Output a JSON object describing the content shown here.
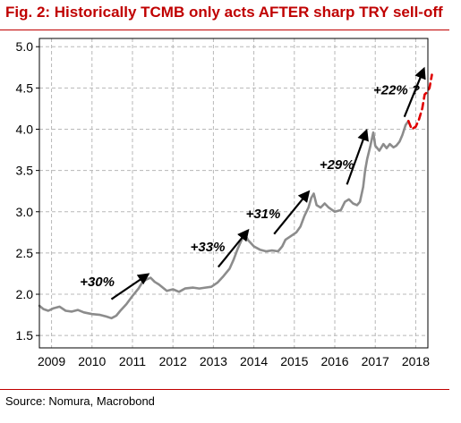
{
  "title": "Fig. 2: Historically TCMB only acts AFTER sharp TRY sell-off",
  "source": "Source: Nomura, Macrobond",
  "chart_data": {
    "type": "line",
    "title": "Fig. 2: Historically TCMB only acts AFTER sharp TRY sell-off",
    "xlabel": "",
    "ylabel": "",
    "xlim": [
      2009.0,
      2018.6
    ],
    "ylim": [
      1.35,
      5.1
    ],
    "grid": true,
    "x_ticks": [
      {
        "label": "2009",
        "x": 2009.3
      },
      {
        "label": "2010",
        "x": 2010.3
      },
      {
        "label": "2011",
        "x": 2011.3
      },
      {
        "label": "2012",
        "x": 2012.3
      },
      {
        "label": "2013",
        "x": 2013.3
      },
      {
        "label": "2014",
        "x": 2014.3
      },
      {
        "label": "2015",
        "x": 2015.3
      },
      {
        "label": "2016",
        "x": 2016.3
      },
      {
        "label": "2017",
        "x": 2017.3
      },
      {
        "label": "2018",
        "x": 2018.3
      }
    ],
    "y_ticks": [
      {
        "label": "1.5",
        "y": 1.5
      },
      {
        "label": "2.0",
        "y": 2.0
      },
      {
        "label": "2.5",
        "y": 2.5
      },
      {
        "label": "3.0",
        "y": 3.0
      },
      {
        "label": "3.5",
        "y": 3.5
      },
      {
        "label": "4.0",
        "y": 4.0
      },
      {
        "label": "4.5",
        "y": 4.5
      },
      {
        "label": "5.0",
        "y": 5.0
      }
    ],
    "series": [
      {
        "color": "#8c8c8c",
        "style": "solid",
        "points": [
          [
            2009.0,
            1.86
          ],
          [
            2009.1,
            1.82
          ],
          [
            2009.22,
            1.8
          ],
          [
            2009.35,
            1.83
          ],
          [
            2009.5,
            1.85
          ],
          [
            2009.65,
            1.8
          ],
          [
            2009.8,
            1.79
          ],
          [
            2009.95,
            1.81
          ],
          [
            2010.1,
            1.78
          ],
          [
            2010.3,
            1.76
          ],
          [
            2010.5,
            1.75
          ],
          [
            2010.65,
            1.73
          ],
          [
            2010.78,
            1.71
          ],
          [
            2010.9,
            1.74
          ],
          [
            2011.0,
            1.8
          ],
          [
            2011.15,
            1.88
          ],
          [
            2011.3,
            1.98
          ],
          [
            2011.45,
            2.07
          ],
          [
            2011.55,
            2.15
          ],
          [
            2011.65,
            2.18
          ],
          [
            2011.75,
            2.2
          ],
          [
            2011.85,
            2.15
          ],
          [
            2011.95,
            2.12
          ],
          [
            2012.05,
            2.08
          ],
          [
            2012.15,
            2.04
          ],
          [
            2012.3,
            2.06
          ],
          [
            2012.45,
            2.03
          ],
          [
            2012.6,
            2.07
          ],
          [
            2012.8,
            2.08
          ],
          [
            2012.95,
            2.07
          ],
          [
            2013.1,
            2.08
          ],
          [
            2013.25,
            2.09
          ],
          [
            2013.4,
            2.14
          ],
          [
            2013.55,
            2.22
          ],
          [
            2013.7,
            2.31
          ],
          [
            2013.8,
            2.42
          ],
          [
            2013.9,
            2.55
          ],
          [
            2014.0,
            2.66
          ],
          [
            2014.07,
            2.74
          ],
          [
            2014.15,
            2.66
          ],
          [
            2014.3,
            2.58
          ],
          [
            2014.45,
            2.54
          ],
          [
            2014.6,
            2.52
          ],
          [
            2014.75,
            2.53
          ],
          [
            2014.9,
            2.52
          ],
          [
            2015.0,
            2.58
          ],
          [
            2015.08,
            2.66
          ],
          [
            2015.2,
            2.7
          ],
          [
            2015.35,
            2.75
          ],
          [
            2015.45,
            2.82
          ],
          [
            2015.55,
            2.95
          ],
          [
            2015.65,
            3.05
          ],
          [
            2015.72,
            3.17
          ],
          [
            2015.78,
            3.22
          ],
          [
            2015.85,
            3.08
          ],
          [
            2015.95,
            3.05
          ],
          [
            2016.05,
            3.1
          ],
          [
            2016.15,
            3.05
          ],
          [
            2016.3,
            3.0
          ],
          [
            2016.45,
            3.02
          ],
          [
            2016.55,
            3.12
          ],
          [
            2016.65,
            3.15
          ],
          [
            2016.75,
            3.1
          ],
          [
            2016.85,
            3.08
          ],
          [
            2016.92,
            3.12
          ],
          [
            2017.0,
            3.3
          ],
          [
            2017.05,
            3.5
          ],
          [
            2017.1,
            3.64
          ],
          [
            2017.18,
            3.8
          ],
          [
            2017.25,
            3.96
          ],
          [
            2017.3,
            3.8
          ],
          [
            2017.4,
            3.74
          ],
          [
            2017.5,
            3.82
          ],
          [
            2017.58,
            3.77
          ],
          [
            2017.66,
            3.82
          ],
          [
            2017.75,
            3.78
          ],
          [
            2017.82,
            3.8
          ],
          [
            2017.9,
            3.85
          ],
          [
            2017.97,
            3.93
          ],
          [
            2018.05,
            4.05
          ],
          [
            2018.12,
            4.1
          ]
        ]
      },
      {
        "color": "#e00000",
        "style": "dashed",
        "points": [
          [
            2018.12,
            4.1
          ],
          [
            2018.2,
            4.0
          ],
          [
            2018.3,
            4.03
          ],
          [
            2018.38,
            4.12
          ],
          [
            2018.46,
            4.25
          ],
          [
            2018.52,
            4.42
          ],
          [
            2018.58,
            4.45
          ],
          [
            2018.64,
            4.5
          ],
          [
            2018.7,
            4.66
          ]
        ]
      }
    ],
    "annotations": [
      {
        "text": "+30%",
        "x": 2010.0,
        "y": 2.1,
        "arrow_from": [
          2010.78,
          1.94
        ],
        "arrow_to": [
          2011.68,
          2.24
        ]
      },
      {
        "text": "+33%",
        "x": 2012.73,
        "y": 2.52,
        "arrow_from": [
          2013.42,
          2.33
        ],
        "arrow_to": [
          2014.15,
          2.77
        ]
      },
      {
        "text": "+31%",
        "x": 2014.1,
        "y": 2.92,
        "arrow_from": [
          2014.8,
          2.73
        ],
        "arrow_to": [
          2015.65,
          3.24
        ]
      },
      {
        "text": "+29%",
        "x": 2015.92,
        "y": 3.52,
        "arrow_from": [
          2016.6,
          3.33
        ],
        "arrow_to": [
          2017.08,
          3.98
        ]
      },
      {
        "text": "+22% ?",
        "x": 2017.25,
        "y": 4.42,
        "arrow_from": [
          2018.02,
          4.15
        ],
        "arrow_to": [
          2018.5,
          4.73
        ]
      }
    ]
  }
}
